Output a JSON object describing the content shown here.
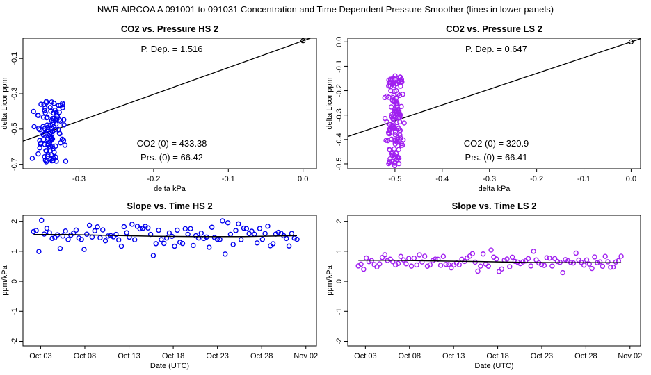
{
  "main_title": "NWR   AIRCOA A   091001 to 091031   Concentration and Time Dependent Pressure Smoother (lines in lower panels)",
  "colors": {
    "hs": "#0000ee",
    "ls": "#a020f0",
    "line": "#000000"
  },
  "chart_data": [
    {
      "id": "p1",
      "type": "scatter",
      "title": "CO2 vs. Pressure HS 2",
      "xlabel": "delta kPa",
      "ylabel": "delta Licor ppm",
      "xlim": [
        -0.375,
        0.018
      ],
      "ylim": [
        -0.725,
        0.015
      ],
      "xticks": [
        -0.3,
        -0.2,
        -0.1,
        0.0
      ],
      "xtick_labels": [
        "-0.3",
        "-0.2",
        "-0.1",
        "0.0"
      ],
      "yticks": [
        -0.7,
        -0.5,
        -0.3,
        -0.1
      ],
      "ytick_labels": [
        "-0.7",
        "-0.5",
        "-0.3",
        "-0.1"
      ],
      "annotations": {
        "p_dep": "P. Dep. =  1.516",
        "co2_0": "CO2 (0) =  433.38",
        "prs_0": "Prs. (0) =  66.42"
      },
      "fit_line": {
        "x": [
          -0.375,
          0.018
        ],
        "y": [
          -0.5685,
          0.0273
        ]
      },
      "ref_point": {
        "x": 0.0,
        "y": 0.0
      },
      "cluster": {
        "x_center": -0.338,
        "x_spread": 0.013,
        "y_min": -0.69,
        "y_max": -0.34,
        "n": 110,
        "seed": 11
      }
    },
    {
      "id": "p2",
      "type": "scatter",
      "title": "CO2 vs. Pressure LS 2",
      "xlabel": "delta kPa",
      "ylabel": "delta Licor ppm",
      "xlim": [
        -0.6,
        0.02
      ],
      "ylim": [
        -0.52,
        0.015
      ],
      "xticks": [
        -0.5,
        -0.4,
        -0.3,
        -0.2,
        -0.1,
        0.0
      ],
      "xtick_labels": [
        "-0.5",
        "-0.4",
        "-0.3",
        "-0.2",
        "-0.1",
        "0.0"
      ],
      "yticks": [
        -0.5,
        -0.4,
        -0.3,
        -0.2,
        -0.1,
        0.0
      ],
      "ytick_labels": [
        "-0.5",
        "-0.4",
        "-0.3",
        "-0.2",
        "-0.1",
        "0.0"
      ],
      "annotations": {
        "p_dep": "P. Dep. =  0.647",
        "co2_0": "CO2 (0) =  320.9",
        "prs_0": "Prs. (0) =  66.41"
      },
      "fit_line": {
        "x": [
          -0.6,
          0.02
        ],
        "y": [
          -0.388,
          0.013
        ]
      },
      "ref_point": {
        "x": 0.0,
        "y": 0.0
      },
      "cluster": {
        "x_center": -0.5,
        "x_spread": 0.012,
        "y_min": -0.51,
        "y_max": -0.13,
        "n": 140,
        "seed": 29
      }
    },
    {
      "id": "p3",
      "type": "scatter",
      "title": "Slope vs. Time HS 2",
      "xlabel": "Date (UTC)",
      "ylabel": "ppm/kPa",
      "xlim": [
        0,
        33.2
      ],
      "ylim": [
        -2.15,
        2.2
      ],
      "xticks": [
        2,
        7,
        12,
        17,
        22,
        27,
        32
      ],
      "xtick_labels": [
        "Oct 03",
        "Oct 08",
        "Oct 13",
        "Oct 18",
        "Oct 23",
        "Oct 28",
        "Nov 02"
      ],
      "yticks": [
        -2,
        -1,
        0,
        1,
        2
      ],
      "ytick_labels": [
        "-2",
        "-1",
        "0",
        "1",
        "2"
      ],
      "smoother": {
        "x": [
          1.2,
          5,
          10,
          15,
          20,
          25,
          31
        ],
        "y": [
          1.56,
          1.56,
          1.53,
          1.5,
          1.49,
          1.49,
          1.52
        ]
      },
      "series": {
        "x_start": 1.2,
        "x_end": 31.0,
        "n": 100,
        "center": 1.52,
        "spread": 0.45,
        "seed": 7
      }
    },
    {
      "id": "p4",
      "type": "scatter",
      "title": "Slope vs. Time LS 2",
      "xlabel": "Date (UTC)",
      "ylabel": "ppm/kPa",
      "xlim": [
        0,
        33.2
      ],
      "ylim": [
        -2.15,
        2.2
      ],
      "xticks": [
        2,
        7,
        12,
        17,
        22,
        27,
        32
      ],
      "xtick_labels": [
        "Oct 03",
        "Oct 08",
        "Oct 13",
        "Oct 18",
        "Oct 23",
        "Oct 28",
        "Nov 02"
      ],
      "yticks": [
        -2,
        -1,
        0,
        1,
        2
      ],
      "ytick_labels": [
        "-2",
        "-1",
        "0",
        "1",
        "2"
      ],
      "smoother": {
        "x": [
          1.2,
          5,
          10,
          15,
          20,
          25,
          31
        ],
        "y": [
          0.7,
          0.7,
          0.68,
          0.66,
          0.63,
          0.62,
          0.62
        ]
      },
      "series": {
        "x_start": 1.2,
        "x_end": 31.0,
        "n": 100,
        "center": 0.66,
        "spread": 0.3,
        "seed": 19
      }
    }
  ]
}
